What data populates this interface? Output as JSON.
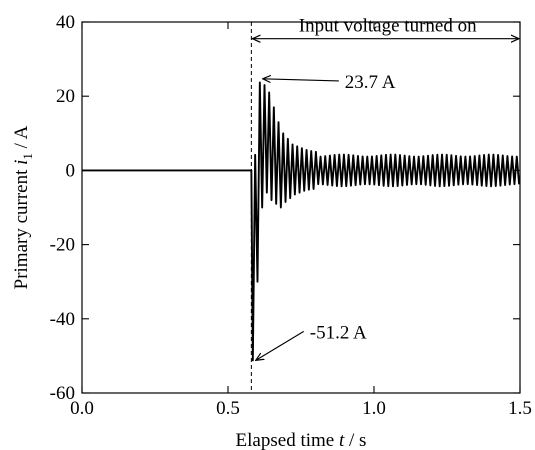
{
  "chart_data": {
    "type": "line",
    "title": "",
    "xlabel": {
      "prefix": "Elapsed time ",
      "var": "t",
      "suffix": " / s"
    },
    "ylabel": {
      "prefix": "Primary current ",
      "var": "i",
      "sub": "1",
      "suffix": " / A"
    },
    "xlim": [
      0.0,
      1.5
    ],
    "ylim": [
      -60,
      40
    ],
    "xticks": [
      0.0,
      0.5,
      1.0,
      1.5
    ],
    "xtick_labels": [
      "0.0",
      "0.5",
      "1.0",
      "1.5"
    ],
    "yticks": [
      -60,
      -40,
      -20,
      0,
      20,
      40
    ],
    "ytick_labels": [
      "-60",
      "-40",
      "-20",
      "0",
      "20",
      "40"
    ],
    "grid": false,
    "switch_on_time": 0.58,
    "series": [
      {
        "points": [
          [
            0.0,
            0
          ],
          [
            0.58,
            0
          ],
          [
            0.585,
            -51.2
          ],
          [
            0.593,
            4.2
          ],
          [
            0.601,
            -30.0
          ],
          [
            0.609,
            23.7
          ],
          [
            0.617,
            -10.0
          ],
          [
            0.625,
            23.0
          ],
          [
            0.633,
            -6.0
          ],
          [
            0.641,
            21.0
          ],
          [
            0.649,
            -8.0
          ],
          [
            0.657,
            17.0
          ],
          [
            0.665,
            -9.0
          ],
          [
            0.673,
            13.0
          ],
          [
            0.681,
            -10.0
          ],
          [
            0.689,
            10.0
          ],
          [
            0.697,
            -8.5
          ],
          [
            0.705,
            8.5
          ],
          [
            0.713,
            -7.5
          ],
          [
            0.721,
            7.0
          ],
          [
            0.729,
            -6.5
          ],
          [
            0.737,
            6.5
          ],
          [
            0.745,
            -6.0
          ],
          [
            0.753,
            6.0
          ],
          [
            0.761,
            -5.5
          ],
          [
            0.769,
            5.5
          ],
          [
            0.777,
            -5.2
          ],
          [
            0.785,
            5.2
          ],
          [
            0.793,
            -5.0
          ],
          [
            0.801,
            5.0
          ],
          [
            1.5,
            4.0
          ]
        ]
      }
    ],
    "annotations": [
      {
        "text": "Input voltage turned on",
        "type": "double-arrow",
        "x_from": 0.58,
        "x_to": 1.5,
        "y": 35.5
      },
      {
        "text": "23.7 A",
        "type": "arrow",
        "target": [
          0.612,
          24.7
        ],
        "text_at": [
          0.9,
          22.5
        ]
      },
      {
        "text": "-51.2 A",
        "type": "arrow",
        "target": [
          0.588,
          -51.2
        ],
        "text_at": [
          0.78,
          -45.0
        ]
      }
    ]
  }
}
